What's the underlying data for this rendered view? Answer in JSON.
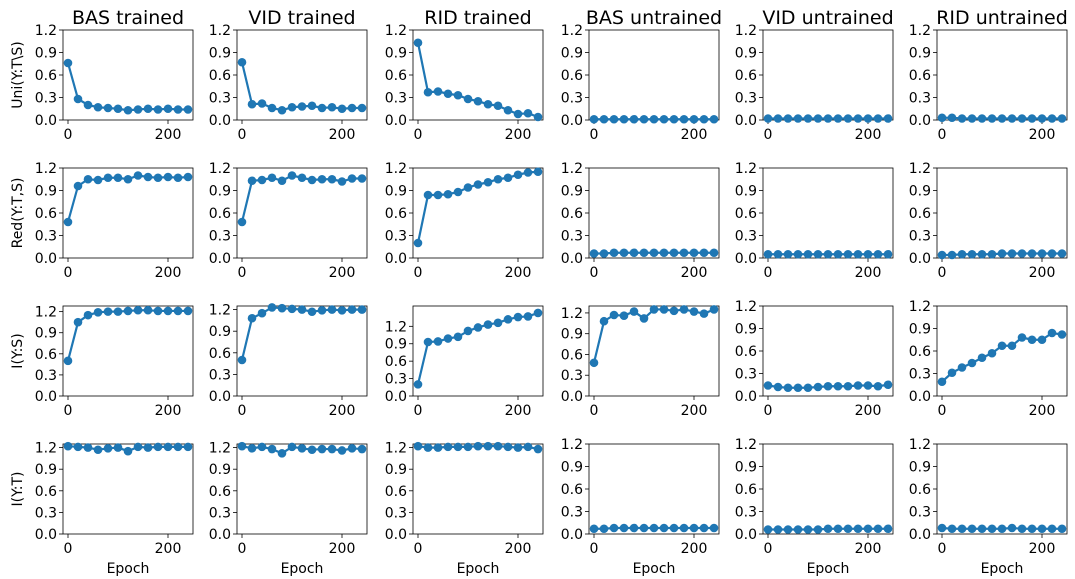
{
  "chart_data": {
    "type": "line",
    "x": [
      0,
      20,
      40,
      60,
      80,
      100,
      120,
      140,
      160,
      180,
      200,
      220,
      240
    ],
    "xlim": [
      -10,
      250
    ],
    "xticks": [
      0,
      200
    ],
    "xlabel": "Epoch",
    "color": "#1f77b4",
    "columns": [
      "BAS trained",
      "VID trained",
      "RID trained",
      "BAS untrained",
      "VID untrained",
      "RID untrained"
    ],
    "rows": [
      {
        "ylabel": "Uni(Y:T\\S)",
        "panels": [
          {
            "ylim": [
              0,
              1.2
            ],
            "yticks": [
              "0.0",
              "0.3",
              "0.6",
              "0.9",
              "1.2"
            ],
            "values": [
              0.76,
              0.28,
              0.2,
              0.17,
              0.16,
              0.15,
              0.13,
              0.14,
              0.15,
              0.14,
              0.15,
              0.14,
              0.14
            ]
          },
          {
            "ylim": [
              0,
              1.2
            ],
            "yticks": [
              "0.0",
              "0.3",
              "0.6",
              "0.9",
              "1.2"
            ],
            "values": [
              0.77,
              0.21,
              0.22,
              0.16,
              0.13,
              0.17,
              0.18,
              0.19,
              0.16,
              0.17,
              0.15,
              0.16,
              0.16
            ]
          },
          {
            "ylim": [
              0,
              1.2
            ],
            "yticks": [
              "0.0",
              "0.3",
              "0.6",
              "0.9",
              "1.2"
            ],
            "values": [
              1.03,
              0.37,
              0.38,
              0.35,
              0.33,
              0.28,
              0.25,
              0.21,
              0.19,
              0.13,
              0.08,
              0.09,
              0.04
            ]
          },
          {
            "ylim": [
              0,
              1.2
            ],
            "yticks": [
              "0.0",
              "0.3",
              "0.6",
              "0.9",
              "1.2"
            ],
            "values": [
              0.01,
              0.01,
              0.01,
              0.01,
              0.01,
              0.01,
              0.01,
              0.01,
              0.01,
              0.01,
              0.01,
              0.01,
              0.01
            ]
          },
          {
            "ylim": [
              0,
              1.2
            ],
            "yticks": [
              "0.0",
              "0.3",
              "0.6",
              "0.9",
              "1.2"
            ],
            "values": [
              0.02,
              0.02,
              0.02,
              0.02,
              0.02,
              0.02,
              0.02,
              0.02,
              0.02,
              0.02,
              0.02,
              0.02,
              0.02
            ]
          },
          {
            "ylim": [
              0,
              1.2
            ],
            "yticks": [
              "0.0",
              "0.3",
              "0.6",
              "0.9",
              "1.2"
            ],
            "values": [
              0.03,
              0.03,
              0.02,
              0.02,
              0.02,
              0.02,
              0.02,
              0.02,
              0.02,
              0.02,
              0.02,
              0.02,
              0.02
            ]
          }
        ]
      },
      {
        "ylabel": "Red(Y:T,S)",
        "panels": [
          {
            "ylim": [
              0,
              1.2
            ],
            "yticks": [
              "0.0",
              "0.3",
              "0.6",
              "0.9",
              "1.2"
            ],
            "values": [
              0.48,
              0.96,
              1.05,
              1.04,
              1.07,
              1.07,
              1.05,
              1.1,
              1.08,
              1.07,
              1.08,
              1.07,
              1.08
            ]
          },
          {
            "ylim": [
              0,
              1.2
            ],
            "yticks": [
              "0.0",
              "0.3",
              "0.6",
              "0.9",
              "1.2"
            ],
            "values": [
              0.48,
              1.03,
              1.04,
              1.07,
              1.03,
              1.1,
              1.07,
              1.04,
              1.05,
              1.05,
              1.02,
              1.06,
              1.06
            ]
          },
          {
            "ylim": [
              0,
              1.2
            ],
            "yticks": [
              "0.0",
              "0.3",
              "0.6",
              "0.9",
              "1.2"
            ],
            "values": [
              0.2,
              0.84,
              0.84,
              0.85,
              0.88,
              0.94,
              0.98,
              1.01,
              1.05,
              1.07,
              1.11,
              1.14,
              1.15
            ]
          },
          {
            "ylim": [
              0,
              1.2
            ],
            "yticks": [
              "0.0",
              "0.3",
              "0.6",
              "0.9",
              "1.2"
            ],
            "values": [
              0.06,
              0.06,
              0.07,
              0.07,
              0.07,
              0.07,
              0.07,
              0.07,
              0.07,
              0.07,
              0.07,
              0.07,
              0.07
            ]
          },
          {
            "ylim": [
              0,
              1.2
            ],
            "yticks": [
              "0.0",
              "0.3",
              "0.6",
              "0.9",
              "1.2"
            ],
            "values": [
              0.05,
              0.05,
              0.05,
              0.05,
              0.05,
              0.05,
              0.05,
              0.05,
              0.05,
              0.05,
              0.05,
              0.05,
              0.05
            ]
          },
          {
            "ylim": [
              0,
              1.2
            ],
            "yticks": [
              "0.0",
              "0.3",
              "0.6",
              "0.9",
              "1.2"
            ],
            "values": [
              0.04,
              0.04,
              0.05,
              0.05,
              0.05,
              0.05,
              0.06,
              0.06,
              0.06,
              0.06,
              0.06,
              0.06,
              0.06
            ]
          }
        ]
      },
      {
        "ylabel": "I(Y:S)",
        "panels": [
          {
            "ylim": [
              0,
              1.28
            ],
            "yticks": [
              "0.0",
              "0.3",
              "0.6",
              "0.9",
              "1.2"
            ],
            "values": [
              0.5,
              1.05,
              1.15,
              1.19,
              1.2,
              1.2,
              1.21,
              1.22,
              1.22,
              1.21,
              1.21,
              1.21,
              1.21
            ]
          },
          {
            "ylim": [
              0,
              1.25
            ],
            "yticks": [
              "0.0",
              "0.3",
              "0.6",
              "0.9",
              "1.2"
            ],
            "values": [
              0.5,
              1.08,
              1.15,
              1.23,
              1.22,
              1.21,
              1.2,
              1.17,
              1.19,
              1.2,
              1.19,
              1.2,
              1.2
            ]
          },
          {
            "ylim": [
              0,
              1.55
            ],
            "yticks": [
              "0.0",
              "0.3",
              "0.6",
              "0.9",
              "1.2"
            ],
            "values": [
              0.2,
              0.93,
              0.94,
              0.99,
              1.02,
              1.12,
              1.18,
              1.23,
              1.26,
              1.32,
              1.36,
              1.37,
              1.43
            ]
          },
          {
            "ylim": [
              0,
              1.3
            ],
            "yticks": [
              "0.0",
              "0.3",
              "0.6",
              "0.9",
              "1.2"
            ],
            "values": [
              0.48,
              1.08,
              1.17,
              1.16,
              1.22,
              1.12,
              1.25,
              1.25,
              1.23,
              1.25,
              1.22,
              1.19,
              1.25
            ]
          },
          {
            "ylim": [
              0,
              1.2
            ],
            "yticks": [
              "0.0",
              "0.3",
              "0.6",
              "0.9",
              "1.2"
            ],
            "values": [
              0.14,
              0.12,
              0.11,
              0.11,
              0.11,
              0.12,
              0.13,
              0.13,
              0.13,
              0.14,
              0.14,
              0.13,
              0.15
            ]
          },
          {
            "ylim": [
              0,
              1.2
            ],
            "yticks": [
              "0.0",
              "0.3",
              "0.6",
              "0.9",
              "1.2"
            ],
            "values": [
              0.19,
              0.31,
              0.38,
              0.44,
              0.51,
              0.57,
              0.67,
              0.67,
              0.78,
              0.75,
              0.75,
              0.84,
              0.82
            ]
          }
        ]
      },
      {
        "ylabel": "I(Y:T)",
        "panels": [
          {
            "ylim": [
              0,
              1.25
            ],
            "yticks": [
              "0.0",
              "0.3",
              "0.6",
              "0.9",
              "1.2"
            ],
            "values": [
              1.22,
              1.21,
              1.2,
              1.17,
              1.19,
              1.2,
              1.15,
              1.21,
              1.2,
              1.21,
              1.21,
              1.21,
              1.21
            ]
          },
          {
            "ylim": [
              0,
              1.25
            ],
            "yticks": [
              "0.0",
              "0.3",
              "0.6",
              "0.9",
              "1.2"
            ],
            "values": [
              1.22,
              1.19,
              1.21,
              1.18,
              1.12,
              1.21,
              1.19,
              1.17,
              1.18,
              1.18,
              1.16,
              1.19,
              1.18
            ]
          },
          {
            "ylim": [
              0,
              1.25
            ],
            "yticks": [
              "0.0",
              "0.3",
              "0.6",
              "0.9",
              "1.2"
            ],
            "values": [
              1.22,
              1.2,
              1.2,
              1.21,
              1.21,
              1.21,
              1.22,
              1.22,
              1.22,
              1.21,
              1.2,
              1.21,
              1.18
            ]
          },
          {
            "ylim": [
              0,
              1.2
            ],
            "yticks": [
              "0.0",
              "0.3",
              "0.6",
              "0.9",
              "1.2"
            ],
            "values": [
              0.07,
              0.07,
              0.08,
              0.08,
              0.08,
              0.08,
              0.08,
              0.08,
              0.08,
              0.08,
              0.08,
              0.08,
              0.08
            ]
          },
          {
            "ylim": [
              0,
              1.2
            ],
            "yticks": [
              "0.0",
              "0.3",
              "0.6",
              "0.9",
              "1.2"
            ],
            "values": [
              0.06,
              0.06,
              0.06,
              0.06,
              0.06,
              0.06,
              0.07,
              0.07,
              0.07,
              0.07,
              0.07,
              0.07,
              0.07
            ]
          },
          {
            "ylim": [
              0,
              1.2
            ],
            "yticks": [
              "0.0",
              "0.3",
              "0.6",
              "0.9",
              "1.2"
            ],
            "values": [
              0.08,
              0.07,
              0.07,
              0.07,
              0.07,
              0.07,
              0.07,
              0.08,
              0.07,
              0.07,
              0.07,
              0.07,
              0.07
            ]
          }
        ]
      }
    ]
  }
}
